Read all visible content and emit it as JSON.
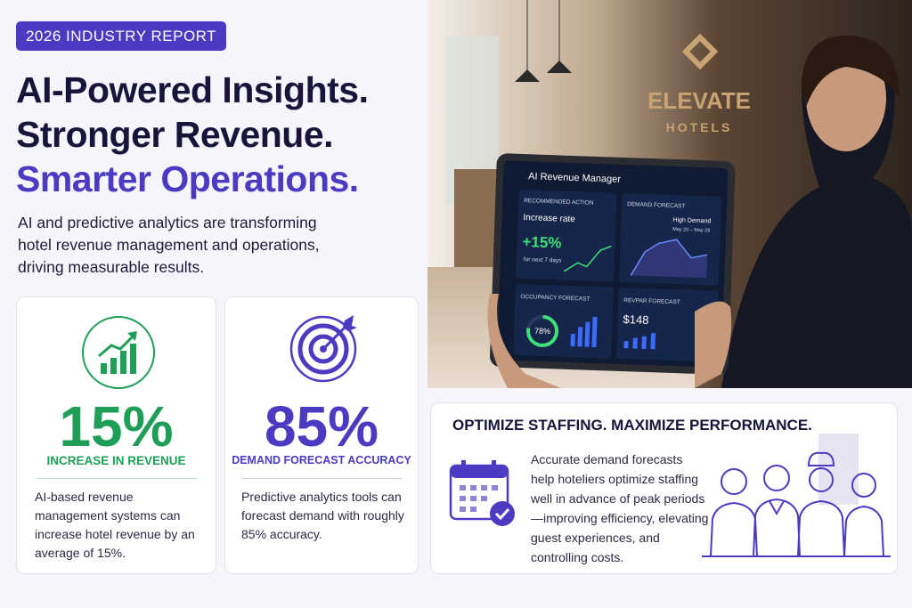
{
  "badge": "2026 INDUSTRY REPORT",
  "headline": {
    "line1": "AI-Powered Insights.",
    "line2": "Stronger Revenue.",
    "line3": "Smarter Operations."
  },
  "intro": "AI and predictive analytics are transforming hotel revenue management and operations, driving measurable results.",
  "photo": {
    "brand": "ELEVATE",
    "brand_sub": "HOTELS",
    "tablet": {
      "app_title": "AI Revenue Manager",
      "rec_label": "RECOMMENDED ACTION",
      "rec_action": "Increase rate",
      "rec_value": "+15%",
      "rec_period": "for next 7 days",
      "demand_label": "DEMAND FORECAST",
      "demand_note": "High Demand",
      "demand_dates": "May 20 – May 26",
      "occupancy_label": "OCCUPANCY FORECAST",
      "occupancy_value": "78%",
      "revpar_label": "REVPAR FORECAST",
      "revpar_value": "$148"
    }
  },
  "cards": [
    {
      "stat": "15%",
      "label": "INCREASE IN REVENUE",
      "text": "AI-based revenue management systems can increase hotel revenue by an average of 15%."
    },
    {
      "stat": "85%",
      "label": "DEMAND FORECAST ACCURACY",
      "text": "Predictive analytics tools can forecast demand with roughly 85% accuracy."
    }
  ],
  "staffing": {
    "title": "OPTIMIZE STAFFING. MAXIMIZE PERFORMANCE.",
    "text": "Accurate demand forecasts help hoteliers optimize staffing well in advance of peak periods—improving efficiency, elevating guest experiences, and controlling costs."
  }
}
